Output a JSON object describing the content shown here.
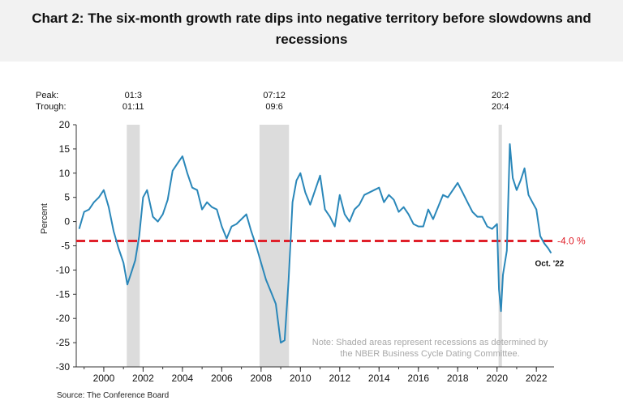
{
  "title": "Chart 2: The six-month growth rate dips into negative territory before slowdowns and recessions",
  "source": "Source: The Conference Board",
  "chart_data": {
    "type": "line",
    "ylabel": "Percent",
    "ylim": [
      -30,
      20
    ],
    "yticks": [
      20,
      15,
      10,
      5,
      0,
      -5,
      -10,
      -15,
      -20,
      -25,
      -30
    ],
    "xlim": [
      1998.6,
      2022.9
    ],
    "xticks": [
      "2000",
      "2002",
      "2004",
      "2006",
      "2008",
      "2010",
      "2012",
      "2014",
      "2016",
      "2018",
      "2020",
      "2022"
    ],
    "grid": false,
    "peak_label": "Peak:",
    "trough_label": "Trough:",
    "recessions": [
      {
        "peak": "01:3",
        "trough": "01:11",
        "start": 2001.17,
        "end": 2001.83
      },
      {
        "peak": "07:12",
        "trough": "09:6",
        "start": 2007.92,
        "end": 2009.42
      },
      {
        "peak": "20:2",
        "trough": "20:4",
        "start": 2020.08,
        "end": 2020.25
      }
    ],
    "threshold": {
      "value": -4.0,
      "label": "-4.0 %",
      "color": "#e0202a"
    },
    "end_annotation": "Oct. '22",
    "note": [
      "Note: Shaded areas represent recessions as determined by",
      "the NBER Business Cycle Dating Committee."
    ],
    "line_color": "#2a87b9",
    "shade_color": "#dcdcdc",
    "series": [
      {
        "x": [
          1998.75,
          1999.0,
          1999.25,
          1999.5,
          1999.75,
          2000.0,
          2000.25,
          2000.5,
          2000.75,
          2001.0,
          2001.2,
          2001.4,
          2001.6,
          2001.8,
          2002.0,
          2002.2,
          2002.5,
          2002.75,
          2003.0,
          2003.25,
          2003.5,
          2003.75,
          2004.0,
          2004.25,
          2004.5,
          2004.75,
          2005.0,
          2005.25,
          2005.5,
          2005.75,
          2006.0,
          2006.25,
          2006.5,
          2006.75,
          2007.0,
          2007.25,
          2007.5,
          2007.75,
          2008.0,
          2008.25,
          2008.5,
          2008.75,
          2009.0,
          2009.2,
          2009.4,
          2009.6,
          2009.8,
          2010.0,
          2010.25,
          2010.5,
          2010.75,
          2011.0,
          2011.25,
          2011.5,
          2011.75,
          2012.0,
          2012.25,
          2012.5,
          2012.75,
          2013.0,
          2013.25,
          2013.5,
          2013.75,
          2014.0,
          2014.25,
          2014.5,
          2014.75,
          2015.0,
          2015.25,
          2015.5,
          2015.75,
          2016.0,
          2016.25,
          2016.5,
          2016.75,
          2017.0,
          2017.25,
          2017.5,
          2017.75,
          2018.0,
          2018.25,
          2018.5,
          2018.75,
          2019.0,
          2019.25,
          2019.5,
          2019.75,
          2020.0,
          2020.1,
          2020.2,
          2020.3,
          2020.5,
          2020.65,
          2020.8,
          2021.0,
          2021.2,
          2021.4,
          2021.6,
          2021.8,
          2022.0,
          2022.2,
          2022.4,
          2022.6,
          2022.75
        ],
        "y": [
          -1.5,
          2.0,
          2.5,
          4.0,
          5.0,
          6.5,
          3.0,
          -2.0,
          -5.5,
          -8.5,
          -13.0,
          -10.5,
          -8.0,
          -3.0,
          5.0,
          6.5,
          1.0,
          0.0,
          1.5,
          4.5,
          10.5,
          12.0,
          13.5,
          10.0,
          7.0,
          6.5,
          2.5,
          4.0,
          3.0,
          2.5,
          -1.0,
          -3.5,
          -1.0,
          -0.5,
          0.5,
          1.5,
          -2.0,
          -5.0,
          -8.5,
          -12.0,
          -14.5,
          -17.0,
          -25.0,
          -24.5,
          -12.0,
          4.0,
          8.5,
          10.0,
          6.0,
          3.5,
          6.5,
          9.5,
          2.5,
          1.0,
          -1.0,
          5.5,
          1.5,
          0.0,
          2.5,
          3.5,
          5.5,
          6.0,
          6.5,
          7.0,
          4.0,
          5.5,
          4.5,
          2.0,
          3.0,
          1.5,
          -0.5,
          -1.0,
          -1.0,
          2.5,
          0.5,
          3.0,
          5.5,
          5.0,
          6.5,
          8.0,
          6.0,
          4.0,
          2.0,
          1.0,
          1.0,
          -1.0,
          -1.5,
          -0.5,
          -14.0,
          -18.5,
          -11.0,
          -6.0,
          16.0,
          9.0,
          6.5,
          8.5,
          11.0,
          5.5,
          4.0,
          2.5,
          -3.0,
          -4.5,
          -5.5,
          -6.5
        ]
      }
    ]
  }
}
